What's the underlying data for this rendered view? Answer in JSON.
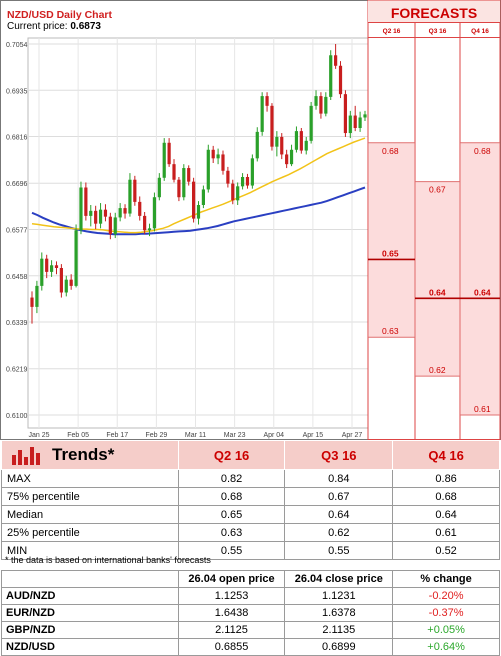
{
  "chart_data": [
    {
      "type": "candlestick",
      "title": "NZD/USD Daily Chart",
      "subtitle_label": "Current price:",
      "subtitle_value": "0.6873",
      "y_ticks": [
        "0.7054",
        "0.6935",
        "0.6816",
        "0.6696",
        "0.6577",
        "0.6458",
        "0.6339",
        "0.6219",
        "0.6100"
      ],
      "ylim": [
        0.61,
        0.7054
      ],
      "x_ticks": [
        "Jan 25",
        "Feb 05",
        "Feb 17",
        "Feb 29",
        "Mar 11",
        "Mar 23",
        "Apr 04",
        "Apr 15",
        "Apr 27"
      ],
      "colors": {
        "up": "#2aa02a",
        "down": "#c81e1e",
        "fast_ma": "#f2c318",
        "slow_ma": "#2a3fc2"
      },
      "candles": [
        [
          0.6402,
          0.6378,
          0.6418,
          0.6335
        ],
        [
          0.6378,
          0.6432,
          0.6445,
          0.6362
        ],
        [
          0.6432,
          0.6502,
          0.6518,
          0.642
        ],
        [
          0.6502,
          0.6468,
          0.6512,
          0.6452
        ],
        [
          0.6468,
          0.6485,
          0.6498,
          0.6455
        ],
        [
          0.6485,
          0.6478,
          0.6495,
          0.6462
        ],
        [
          0.6478,
          0.6415,
          0.6488,
          0.6402
        ],
        [
          0.6415,
          0.6448,
          0.6458,
          0.6405
        ],
        [
          0.6448,
          0.6432,
          0.6462,
          0.6422
        ],
        [
          0.6432,
          0.6575,
          0.659,
          0.6428
        ],
        [
          0.6575,
          0.6685,
          0.67,
          0.6565
        ],
        [
          0.6685,
          0.6612,
          0.6698,
          0.66
        ],
        [
          0.6612,
          0.6625,
          0.664,
          0.6585
        ],
        [
          0.6625,
          0.6592,
          0.6638,
          0.6578
        ],
        [
          0.6592,
          0.6628,
          0.6645,
          0.658
        ],
        [
          0.6628,
          0.661,
          0.6642,
          0.6598
        ],
        [
          0.661,
          0.6565,
          0.662,
          0.6552
        ],
        [
          0.6565,
          0.6608,
          0.662,
          0.6555
        ],
        [
          0.6608,
          0.6632,
          0.6645,
          0.6598
        ],
        [
          0.6632,
          0.6618,
          0.6642,
          0.6605
        ],
        [
          0.6618,
          0.6705,
          0.6722,
          0.661
        ],
        [
          0.6705,
          0.6648,
          0.6715,
          0.6638
        ],
        [
          0.6648,
          0.6612,
          0.6662,
          0.66
        ],
        [
          0.6612,
          0.6575,
          0.6622,
          0.6565
        ],
        [
          0.6575,
          0.658,
          0.6592,
          0.656
        ],
        [
          0.658,
          0.666,
          0.6672,
          0.6572
        ],
        [
          0.666,
          0.671,
          0.6722,
          0.6652
        ],
        [
          0.671,
          0.68,
          0.6812,
          0.6702
        ],
        [
          0.68,
          0.6745,
          0.6812,
          0.6738
        ],
        [
          0.6745,
          0.6705,
          0.6758,
          0.6698
        ],
        [
          0.6705,
          0.666,
          0.6712,
          0.665
        ],
        [
          0.666,
          0.6735,
          0.6745,
          0.6652
        ],
        [
          0.6735,
          0.67,
          0.6742,
          0.669
        ],
        [
          0.67,
          0.6605,
          0.671,
          0.6595
        ],
        [
          0.6605,
          0.664,
          0.665,
          0.659
        ],
        [
          0.664,
          0.668,
          0.669,
          0.6632
        ],
        [
          0.668,
          0.6782,
          0.6795,
          0.6672
        ],
        [
          0.6782,
          0.676,
          0.6792,
          0.6748
        ],
        [
          0.676,
          0.677,
          0.6785,
          0.6745
        ],
        [
          0.677,
          0.6728,
          0.678,
          0.6718
        ],
        [
          0.6728,
          0.6695,
          0.6738,
          0.6685
        ],
        [
          0.6695,
          0.6652,
          0.6705,
          0.6642
        ],
        [
          0.6652,
          0.6688,
          0.6698,
          0.664
        ],
        [
          0.6688,
          0.6712,
          0.6722,
          0.668
        ],
        [
          0.6712,
          0.669,
          0.672,
          0.6682
        ],
        [
          0.669,
          0.676,
          0.677,
          0.6682
        ],
        [
          0.676,
          0.6828,
          0.684,
          0.6752
        ],
        [
          0.6828,
          0.692,
          0.693,
          0.6818
        ],
        [
          0.692,
          0.6895,
          0.693,
          0.688
        ],
        [
          0.6895,
          0.679,
          0.6902,
          0.678
        ],
        [
          0.679,
          0.6815,
          0.683,
          0.6765
        ],
        [
          0.6815,
          0.677,
          0.6825,
          0.6758
        ],
        [
          0.677,
          0.6745,
          0.6782,
          0.6735
        ],
        [
          0.6745,
          0.6782,
          0.6795,
          0.674
        ],
        [
          0.6782,
          0.683,
          0.6842,
          0.6775
        ],
        [
          0.683,
          0.678,
          0.6838,
          0.6772
        ],
        [
          0.678,
          0.6805,
          0.6815,
          0.677
        ],
        [
          0.6805,
          0.6895,
          0.6905,
          0.6798
        ],
        [
          0.6895,
          0.692,
          0.6935,
          0.6885
        ],
        [
          0.692,
          0.6875,
          0.693,
          0.6862
        ],
        [
          0.6875,
          0.6918,
          0.693,
          0.6868
        ],
        [
          0.6918,
          0.7025,
          0.7038,
          0.691
        ],
        [
          0.7025,
          0.6998,
          0.7054,
          0.699
        ],
        [
          0.6998,
          0.6925,
          0.701,
          0.6915
        ],
        [
          0.6925,
          0.6825,
          0.6935,
          0.6815
        ],
        [
          0.6825,
          0.687,
          0.6882,
          0.6812
        ],
        [
          0.687,
          0.6838,
          0.6895,
          0.683
        ],
        [
          0.6838,
          0.6865,
          0.688,
          0.6828
        ],
        [
          0.6865,
          0.6873,
          0.6882,
          0.6856
        ]
      ],
      "fast_ma": [
        0.6592,
        0.659,
        0.6588,
        0.6586,
        0.6584,
        0.6583,
        0.6582,
        0.658,
        0.6579,
        0.6578,
        0.6578,
        0.6577,
        0.6577,
        0.6576,
        0.6574,
        0.6572,
        0.6571,
        0.657,
        0.6569,
        0.6569,
        0.657,
        0.6572,
        0.6574,
        0.6577,
        0.658,
        0.6585,
        0.6592,
        0.6598,
        0.6604,
        0.661,
        0.6616,
        0.6622,
        0.6627,
        0.6632,
        0.6637,
        0.6642,
        0.6648,
        0.6654,
        0.666,
        0.6666,
        0.6672,
        0.6679,
        0.6686,
        0.6693,
        0.67,
        0.6706,
        0.6712,
        0.6718,
        0.6725,
        0.6732,
        0.674,
        0.6748,
        0.6756,
        0.6764,
        0.6772,
        0.6778,
        0.6784,
        0.679,
        0.6796,
        0.6802,
        0.6807,
        0.6812
      ],
      "slow_ma": [
        0.662,
        0.6614,
        0.6607,
        0.6601,
        0.6595,
        0.659,
        0.6586,
        0.6582,
        0.6578,
        0.6575,
        0.6572,
        0.657,
        0.6568,
        0.6567,
        0.6566,
        0.6565,
        0.6565,
        0.6565,
        0.6565,
        0.6565,
        0.6566,
        0.6566,
        0.6567,
        0.6568,
        0.6569,
        0.657,
        0.6571,
        0.6572,
        0.6573,
        0.6574,
        0.6576,
        0.6578,
        0.658,
        0.6583,
        0.6586,
        0.659,
        0.6594,
        0.6598,
        0.6601,
        0.6604,
        0.6607,
        0.661,
        0.6613,
        0.6616,
        0.6619,
        0.6622,
        0.6625,
        0.6628,
        0.6631,
        0.6634,
        0.6637,
        0.664,
        0.6643,
        0.6646,
        0.665,
        0.6655,
        0.666,
        0.6665,
        0.667,
        0.6675,
        0.668,
        0.6685
      ]
    },
    {
      "type": "range",
      "title": "FORECASTS",
      "categories": [
        "Q2 16",
        "Q3 16",
        "Q4 16"
      ],
      "high": [
        0.68,
        0.67,
        0.68
      ],
      "median": [
        0.65,
        0.64,
        0.64
      ],
      "low": [
        0.63,
        0.62,
        0.61
      ],
      "high_labels": [
        "0.68",
        "0.67",
        "0.68"
      ],
      "median_labels": [
        "0.65",
        "0.64",
        "0.64"
      ],
      "low_labels": [
        "0.63",
        "0.62",
        "0.61"
      ]
    }
  ],
  "trends": {
    "title": "Trends*",
    "columns": [
      "Q2 16",
      "Q3 16",
      "Q4 16"
    ],
    "rows": [
      {
        "label": "MAX",
        "values": [
          "0.82",
          "0.84",
          "0.86"
        ]
      },
      {
        "label": "75% percentile",
        "values": [
          "0.68",
          "0.67",
          "0.68"
        ]
      },
      {
        "label": "Median",
        "values": [
          "0.65",
          "0.64",
          "0.64"
        ]
      },
      {
        "label": "25% percentile",
        "values": [
          "0.63",
          "0.62",
          "0.61"
        ]
      },
      {
        "label": "MIN",
        "values": [
          "0.55",
          "0.55",
          "0.52"
        ]
      }
    ],
    "note": "* the data is based on international banks' forecasts"
  },
  "prices": {
    "headers": [
      "",
      "26.04 open price",
      "26.04 close price",
      "% change"
    ],
    "rows": [
      {
        "pair": "AUD/NZD",
        "open": "1.1253",
        "close": "1.1231",
        "change": "-0.20%"
      },
      {
        "pair": "EUR/NZD",
        "open": "1.6438",
        "close": "1.6378",
        "change": "-0.37%"
      },
      {
        "pair": "GBP/NZD",
        "open": "2.1125",
        "close": "2.1135",
        "change": "+0.05%"
      },
      {
        "pair": "NZD/USD",
        "open": "0.6855",
        "close": "0.6899",
        "change": "+0.64%"
      }
    ]
  }
}
